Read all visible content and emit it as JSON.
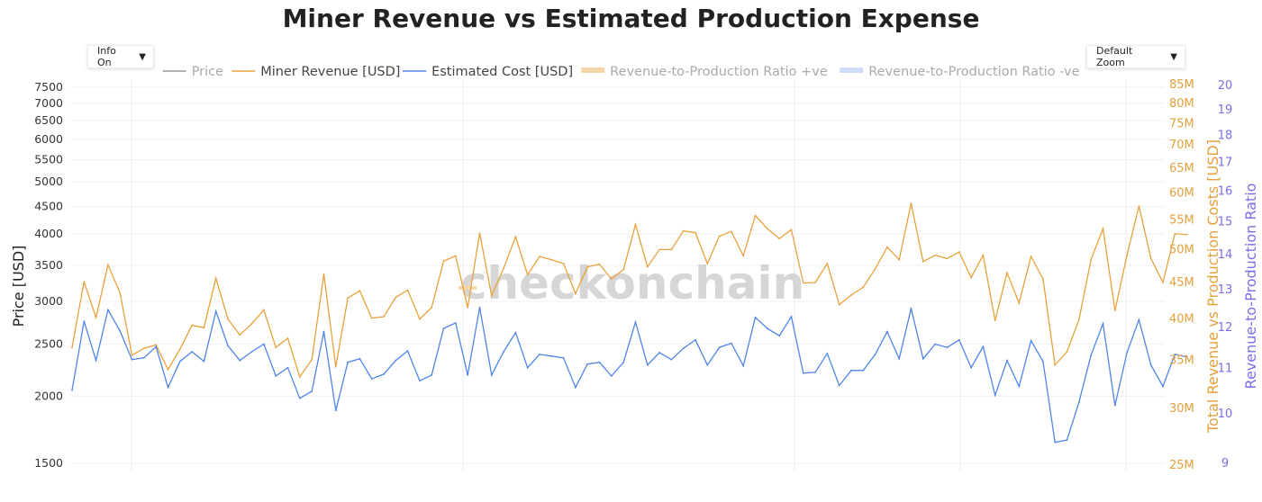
{
  "title": "Miner Revenue vs Estimated Production Expense",
  "controls": {
    "info_label": "Info On",
    "zoom_label": "Default Zoom"
  },
  "watermark": "checkonchain",
  "legend": [
    {
      "label": "Price",
      "color": "#999999",
      "style": "line",
      "dim": true
    },
    {
      "label": "Miner Revenue [USD]",
      "color": "#e8a23c",
      "style": "line",
      "dim": false
    },
    {
      "label": "Estimated Cost [USD]",
      "color": "#4f85e8",
      "style": "line",
      "dim": false
    },
    {
      "label": "Revenue-to-Production Ratio +ve",
      "color": "#f6d6a8",
      "style": "band",
      "dim": true
    },
    {
      "label": "Revenue-to-Production Ratio -ve",
      "color": "#cfdcf7",
      "style": "band",
      "dim": true
    }
  ],
  "chart_data": {
    "type": "line",
    "title": "Miner Revenue vs Estimated Production Expense",
    "x_count": 92,
    "axes": {
      "y_left": {
        "label": "Price [USD]",
        "scale": "log",
        "range": [
          1450,
          7700
        ],
        "ticks": [
          "1500",
          "2000",
          "2500",
          "3000",
          "3500",
          "4000",
          "4500",
          "5000",
          "5500",
          "6000",
          "6500",
          "7000",
          "7500"
        ]
      },
      "y_right_revenue": {
        "label": "Total Revenue vs Production Costs [USD]",
        "scale": "log",
        "range": [
          24500000,
          86000000
        ],
        "ticks": [
          "25M",
          "30M",
          "35M",
          "40M",
          "45M",
          "50M",
          "55M",
          "60M",
          "65M",
          "70M",
          "75M",
          "80M",
          "85M"
        ]
      },
      "y_right_ratio": {
        "label": "Revenue-to-Production Ratio",
        "scale": "log",
        "range": [
          8.85,
          20.2
        ],
        "ticks": [
          "9",
          "10",
          "11",
          "12",
          "13",
          "14",
          "15",
          "16",
          "17",
          "18",
          "19",
          "20"
        ]
      }
    },
    "grid": true,
    "series": [
      {
        "name": "Miner Revenue [USD]",
        "color": "#e8a23c",
        "axis": "y_right_revenue",
        "values": [
          36.5,
          45.1,
          40.2,
          47.6,
          43.5,
          35.6,
          36.4,
          36.8,
          34.0,
          36.3,
          39.2,
          38.9,
          45.6,
          40.0,
          38.0,
          39.4,
          41.2,
          36.5,
          37.6,
          33.2,
          35.1,
          46.2,
          34.3,
          42.8,
          43.8,
          40.1,
          40.3,
          42.9,
          43.9,
          40.0,
          41.5,
          48.2,
          49.0,
          41.5,
          52.7,
          43.1,
          47.1,
          52.1,
          46.1,
          48.9,
          48.4,
          47.8,
          43.4,
          47.3,
          47.7,
          45.5,
          46.9,
          54.2,
          47.3,
          50.0,
          50.0,
          53.1,
          52.8,
          47.8,
          52.2,
          53.0,
          49.0,
          55.8,
          53.5,
          51.8,
          53.3,
          44.9,
          45.0,
          47.8,
          41.9,
          43.2,
          44.3,
          47.0,
          50.4,
          48.4,
          58.0,
          48.1,
          49.1,
          48.6,
          49.6,
          45.7,
          49.1,
          39.8,
          46.4,
          42.1,
          48.9,
          45.5,
          34.5,
          36.0,
          39.9,
          48.4,
          53.5,
          41.1,
          49.1,
          57.5,
          48.6,
          45.0,
          52.6,
          52.5
        ]
      },
      {
        "name": "Estimated Cost [USD]",
        "color": "#4f85e8",
        "axis": "y_right_revenue",
        "values": [
          31.8,
          39.7,
          35.0,
          41.2,
          38.5,
          35.1,
          35.3,
          36.6,
          32.1,
          34.9,
          36.0,
          34.9,
          41.0,
          36.7,
          35.0,
          36.0,
          36.9,
          33.3,
          34.2,
          31.0,
          31.7,
          38.4,
          29.8,
          34.8,
          35.2,
          33.0,
          33.5,
          35.0,
          36.1,
          32.8,
          33.4,
          38.8,
          39.5,
          33.4,
          41.5,
          33.4,
          36.0,
          38.3,
          34.2,
          35.7,
          35.5,
          35.3,
          32.1,
          34.6,
          34.8,
          33.3,
          34.8,
          39.6,
          34.5,
          35.9,
          35.1,
          36.4,
          37.4,
          34.5,
          36.5,
          37.0,
          34.4,
          40.2,
          38.8,
          37.9,
          40.3,
          33.6,
          33.7,
          35.8,
          32.3,
          33.9,
          33.9,
          35.7,
          38.4,
          35.2,
          41.4,
          35.2,
          36.9,
          36.5,
          37.4,
          34.2,
          36.6,
          31.3,
          35.0,
          32.2,
          37.3,
          34.9,
          26.9,
          27.1,
          30.6,
          35.6,
          39.4,
          30.3,
          35.9,
          39.9,
          34.5,
          32.2,
          35.7,
          35.4
        ]
      }
    ],
    "bands": [
      {
        "name": "Revenue-to-Production Ratio +ve",
        "color": "#f6d6a8",
        "x_index": 33,
        "value": 44.2
      }
    ]
  }
}
